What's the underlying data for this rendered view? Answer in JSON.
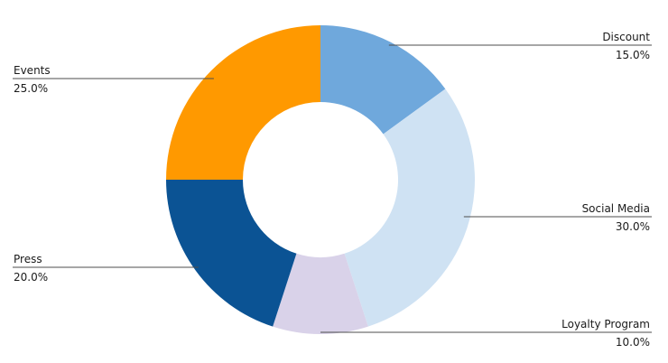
{
  "chart_data": {
    "type": "pie",
    "donut": true,
    "title": "",
    "slices": [
      {
        "label": "Discount",
        "value": 15.0,
        "display": "15.0%",
        "color": "#6fa8dc"
      },
      {
        "label": "Social Media",
        "value": 30.0,
        "display": "30.0%",
        "color": "#cfe2f3"
      },
      {
        "label": "Loyalty Program",
        "value": 10.0,
        "display": "10.0%",
        "color": "#d9d2e9"
      },
      {
        "label": "Press",
        "value": 20.0,
        "display": "20.0%",
        "color": "#0b5394"
      },
      {
        "label": "Events",
        "value": 25.0,
        "display": "25.0%",
        "color": "#ff9900"
      }
    ],
    "start_angle_deg": 0,
    "direction": "clockwise",
    "legend": "none"
  }
}
